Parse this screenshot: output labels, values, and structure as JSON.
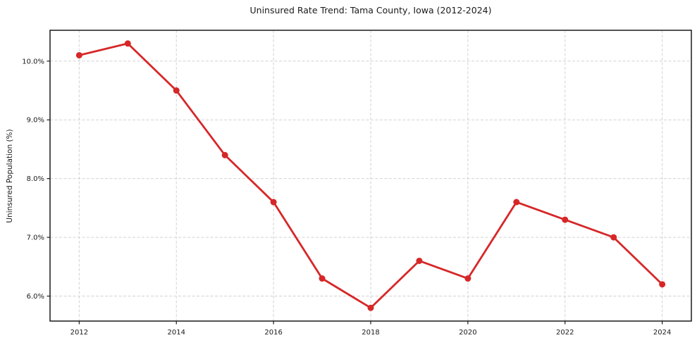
{
  "chart_data": {
    "type": "line",
    "title": "Uninsured Rate Trend: Tama County, Iowa (2012-2024)",
    "xlabel": "",
    "ylabel": "Uninsured Population (%)",
    "x": [
      2012,
      2013,
      2014,
      2015,
      2016,
      2017,
      2018,
      2019,
      2020,
      2021,
      2022,
      2023,
      2024
    ],
    "values": [
      10.1,
      10.3,
      9.5,
      8.4,
      7.6,
      6.3,
      5.8,
      6.6,
      6.3,
      7.6,
      7.3,
      7.0,
      6.2
    ],
    "xlim": [
      2011.4,
      2024.6
    ],
    "ylim": [
      5.575,
      10.525
    ],
    "xticks": [
      2012,
      2014,
      2016,
      2018,
      2020,
      2022,
      2024
    ],
    "xticklabels": [
      "2012",
      "2014",
      "2016",
      "2018",
      "2020",
      "2022",
      "2024"
    ],
    "yticks": [
      6.0,
      7.0,
      8.0,
      9.0,
      10.0
    ],
    "yticklabels": [
      "6.0%",
      "7.0%",
      "8.0%",
      "9.0%",
      "10.0%"
    ],
    "grid": true,
    "grid_style": "dashed",
    "legend": false,
    "line_color": "#d62728",
    "marker": "o"
  }
}
